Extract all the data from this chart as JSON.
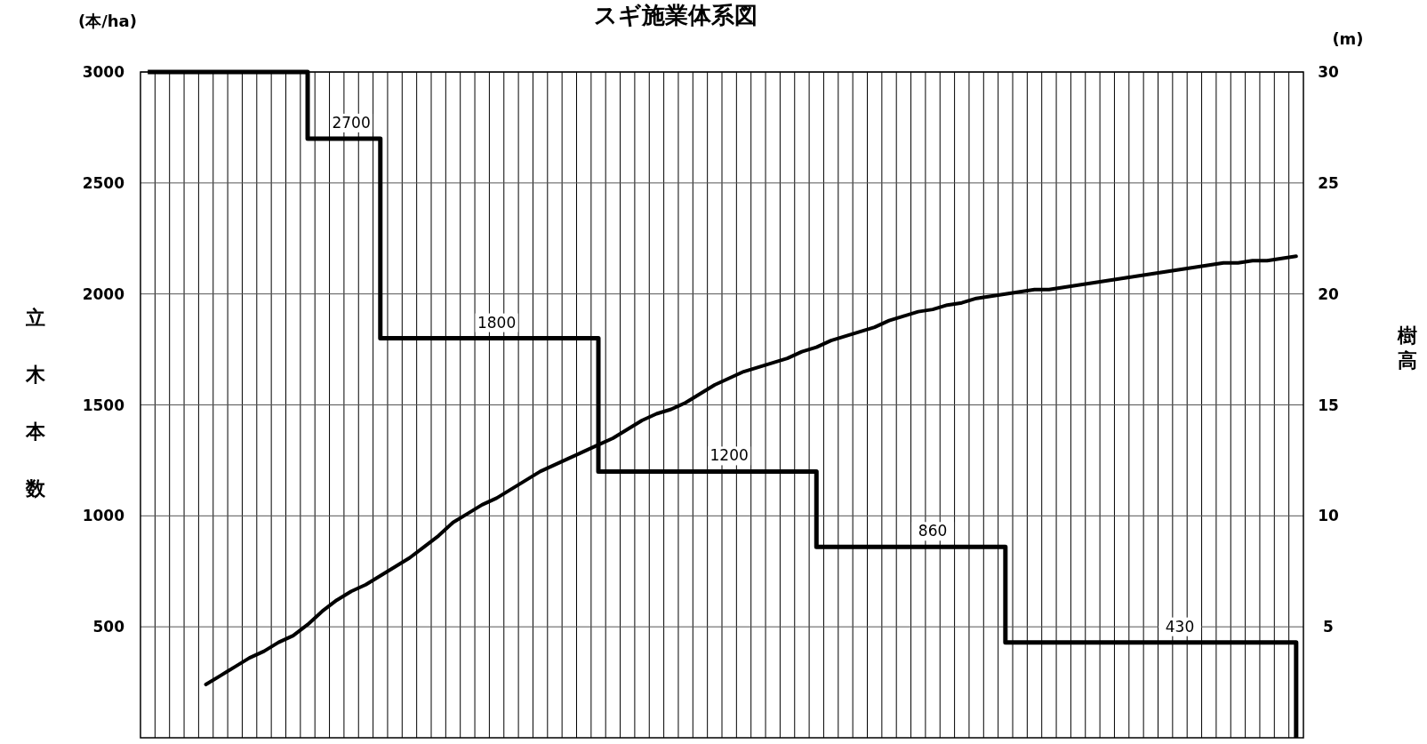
{
  "chart_data": {
    "type": "line",
    "title": "スギ施業体系図",
    "ylabel": "立木本数",
    "y2label": "樹高",
    "annotations": [
      "(本/ha)",
      "(m)"
    ],
    "categories": [
      null,
      null,
      null,
      null,
      null,
      null,
      null,
      null,
      null,
      null,
      null,
      null,
      null,
      null,
      null,
      null,
      null,
      null,
      null,
      null,
      null,
      null,
      null,
      null,
      null,
      null,
      null,
      null,
      null,
      null,
      null,
      null,
      null,
      null,
      null,
      null,
      null,
      null,
      null,
      null,
      null,
      null,
      null,
      null,
      null,
      null,
      null,
      null,
      null,
      null,
      null,
      null,
      null,
      null,
      null,
      null,
      null,
      null,
      null,
      null,
      null,
      null,
      null,
      null,
      null,
      null,
      null,
      null,
      null,
      null,
      null,
      null,
      null,
      null,
      null,
      null,
      null,
      null,
      null,
      null
    ],
    "ylim": [
      0,
      3000
    ],
    "yticks": [
      500,
      1000,
      1500,
      2000,
      2500,
      3000
    ],
    "y2lim": [
      0,
      30
    ],
    "y2ticks": [
      5,
      10,
      15,
      20,
      25,
      30
    ],
    "grid": true,
    "series": [
      {
        "type": "step",
        "color": "#000000",
        "values": [
          3000,
          3000,
          3000,
          3000,
          3000,
          3000,
          3000,
          3000,
          3000,
          3000,
          3000,
          2700,
          2700,
          2700,
          2700,
          2700,
          1800,
          1800,
          1800,
          1800,
          1800,
          1800,
          1800,
          1800,
          1800,
          1800,
          1800,
          1800,
          1800,
          1800,
          1800,
          1200,
          1200,
          1200,
          1200,
          1200,
          1200,
          1200,
          1200,
          1200,
          1200,
          1200,
          1200,
          1200,
          1200,
          1200,
          860,
          860,
          860,
          860,
          860,
          860,
          860,
          860,
          860,
          860,
          860,
          860,
          860,
          430,
          430,
          430,
          430,
          430,
          430,
          430,
          430,
          430,
          430,
          430,
          430,
          430,
          430,
          430,
          430,
          430,
          430,
          430,
          430,
          0
        ],
        "value_labels": [
          null,
          null,
          null,
          null,
          null,
          null,
          null,
          null,
          null,
          null,
          null,
          null,
          null,
          null,
          "2700",
          null,
          null,
          null,
          null,
          null,
          null,
          null,
          null,
          null,
          "1800",
          null,
          null,
          null,
          null,
          null,
          null,
          null,
          null,
          null,
          null,
          null,
          null,
          null,
          null,
          null,
          "1200",
          null,
          null,
          null,
          null,
          null,
          null,
          null,
          null,
          null,
          null,
          null,
          null,
          null,
          "860",
          null,
          null,
          null,
          null,
          null,
          null,
          null,
          null,
          null,
          null,
          null,
          null,
          null,
          null,
          null,
          null,
          "430",
          null,
          null,
          null,
          null,
          null,
          null,
          null,
          null
        ]
      },
      {
        "type": "line",
        "axis": "y2",
        "color": "#000000",
        "values": [
          null,
          null,
          null,
          null,
          2.4,
          2.8,
          3.2,
          3.6,
          3.9,
          4.3,
          4.6,
          5.1,
          5.7,
          6.2,
          6.6,
          6.9,
          7.3,
          7.7,
          8.1,
          8.6,
          9.1,
          9.7,
          10.1,
          10.5,
          10.8,
          11.2,
          11.6,
          12.0,
          12.3,
          12.6,
          12.9,
          13.2,
          13.5,
          13.9,
          14.3,
          14.6,
          14.8,
          15.1,
          15.5,
          15.9,
          16.2,
          16.5,
          16.7,
          16.9,
          17.1,
          17.4,
          17.6,
          17.9,
          18.1,
          18.3,
          18.5,
          18.8,
          19.0,
          19.2,
          19.3,
          19.5,
          19.6,
          19.8,
          19.9,
          20.0,
          20.1,
          20.2,
          20.2,
          20.3,
          20.4,
          20.5,
          20.6,
          20.7,
          20.8,
          20.9,
          21.0,
          21.1,
          21.2,
          21.3,
          21.4,
          21.4,
          21.5,
          21.5,
          21.6,
          21.7
        ]
      }
    ]
  }
}
